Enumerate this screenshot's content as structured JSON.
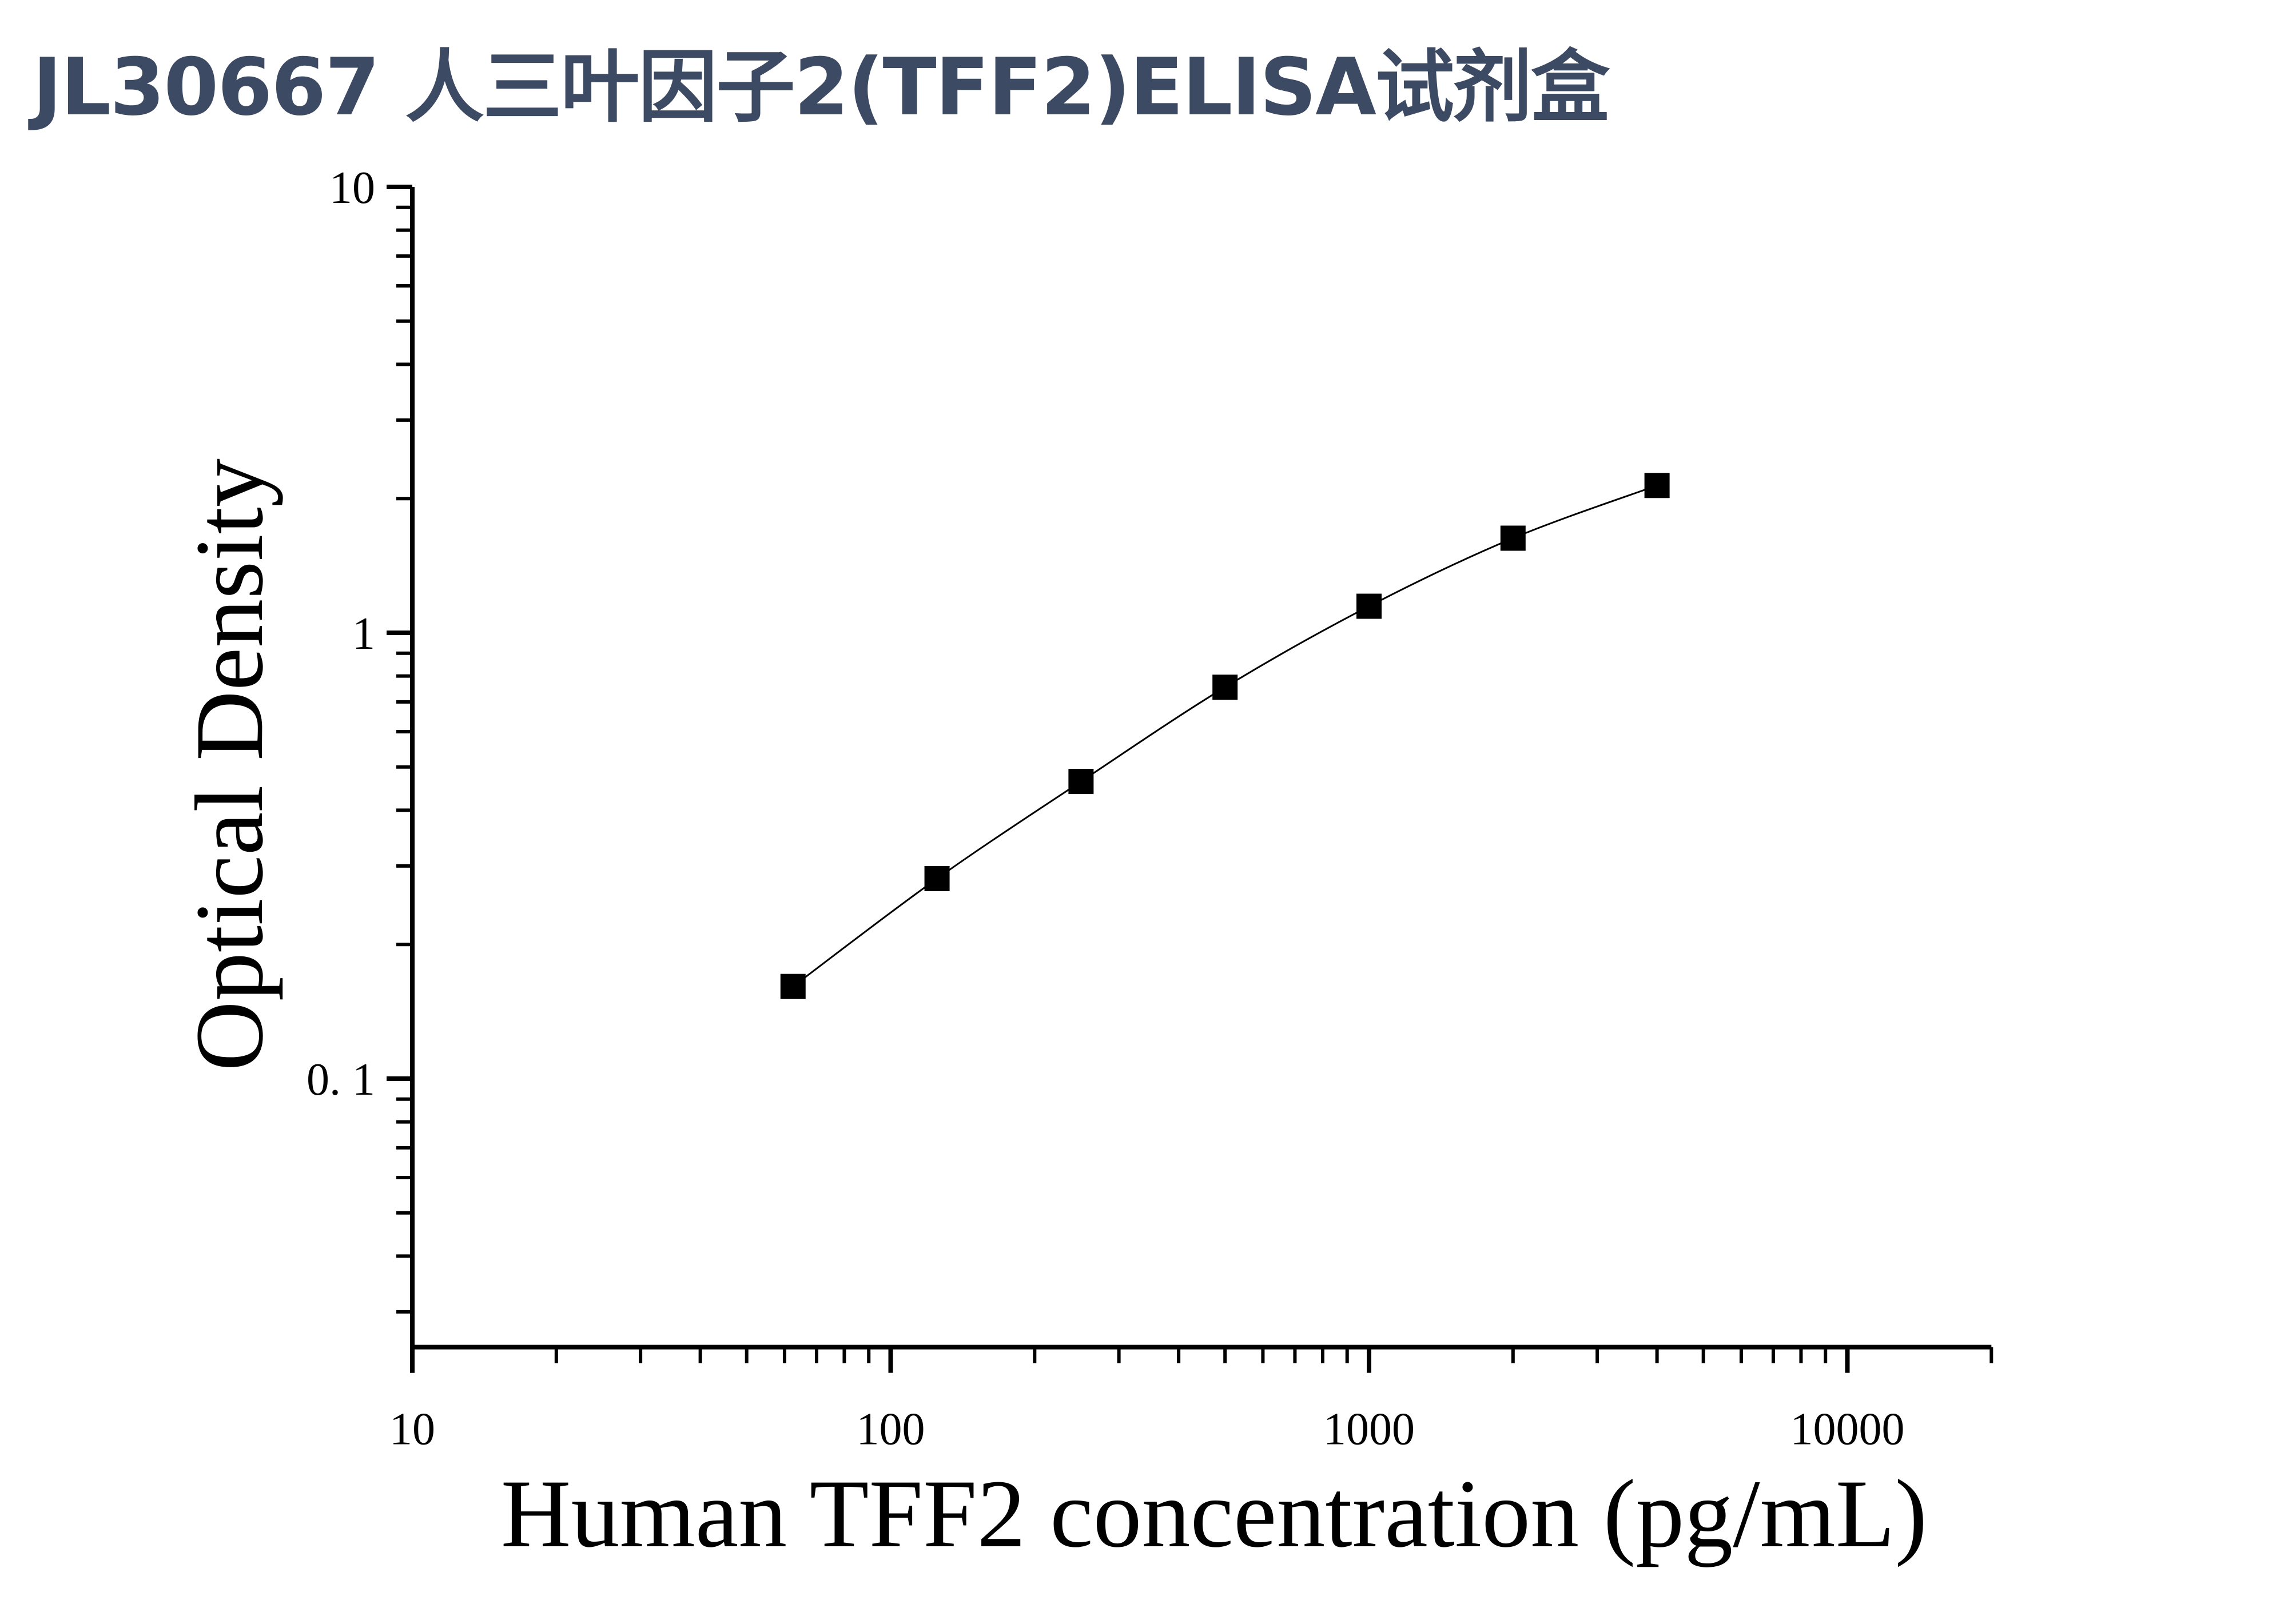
{
  "title": "JL30667 人三叶因子2(TFF2)ELISA试剂盒",
  "chart_data": {
    "type": "scatter",
    "title": "JL30667 人三叶因子2(TFF2)ELISA试剂盒",
    "xlabel": "Human TFF2 concentration (pg/mL)",
    "ylabel": "Optical Density",
    "x_scale": "log",
    "y_scale": "log",
    "xlim": [
      10,
      20000
    ],
    "ylim": [
      0.025,
      10
    ],
    "x_tick_labels": [
      "10",
      "100",
      "1000",
      "10000"
    ],
    "y_tick_labels": [
      "0. 1",
      "1",
      "10"
    ],
    "grid": false,
    "marker": "square",
    "fit_line": true,
    "series": [
      {
        "x": [
          62.5,
          125,
          250,
          500,
          1000,
          2000,
          4000
        ],
        "y": [
          0.161,
          0.281,
          0.464,
          0.755,
          1.147,
          1.63,
          2.14
        ]
      }
    ],
    "colors": {
      "marker": "#000000",
      "line": "#000000",
      "title": "#3d4a63"
    }
  }
}
